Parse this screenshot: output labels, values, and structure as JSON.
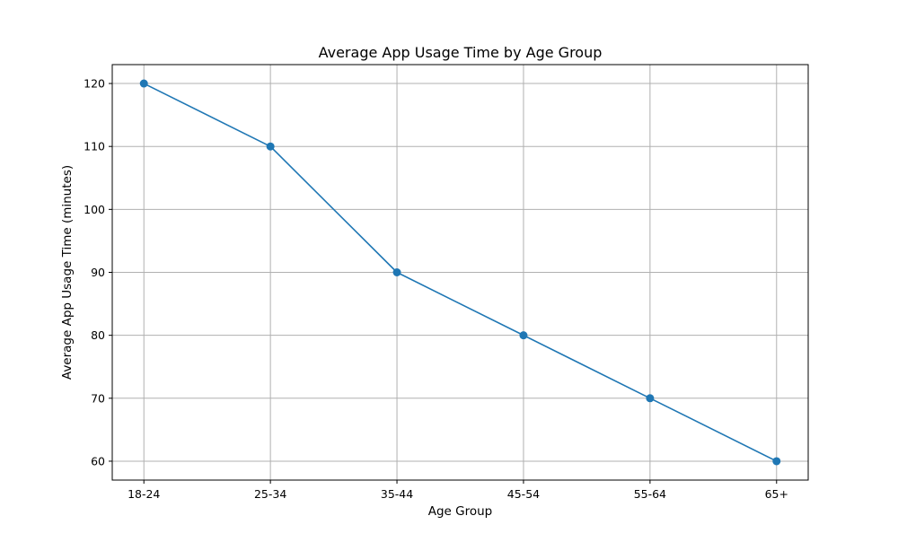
{
  "chart_data": {
    "type": "line",
    "title": "Average App Usage Time by Age Group",
    "xlabel": "Age Group",
    "ylabel": "Average App Usage Time (minutes)",
    "categories": [
      "18-24",
      "25-34",
      "35-44",
      "45-54",
      "55-64",
      "65+"
    ],
    "series": [
      {
        "values": [
          120,
          110,
          90,
          80,
          70,
          60
        ],
        "color": "#1f77b4",
        "marker": "circle"
      }
    ],
    "yticks": [
      60,
      70,
      80,
      90,
      100,
      110,
      120
    ],
    "ylim": [
      57,
      123
    ],
    "grid": true,
    "legend": "none"
  },
  "colors": {
    "series": "#1f77b4",
    "grid": "#b0b0b0",
    "axes": "#000000"
  }
}
